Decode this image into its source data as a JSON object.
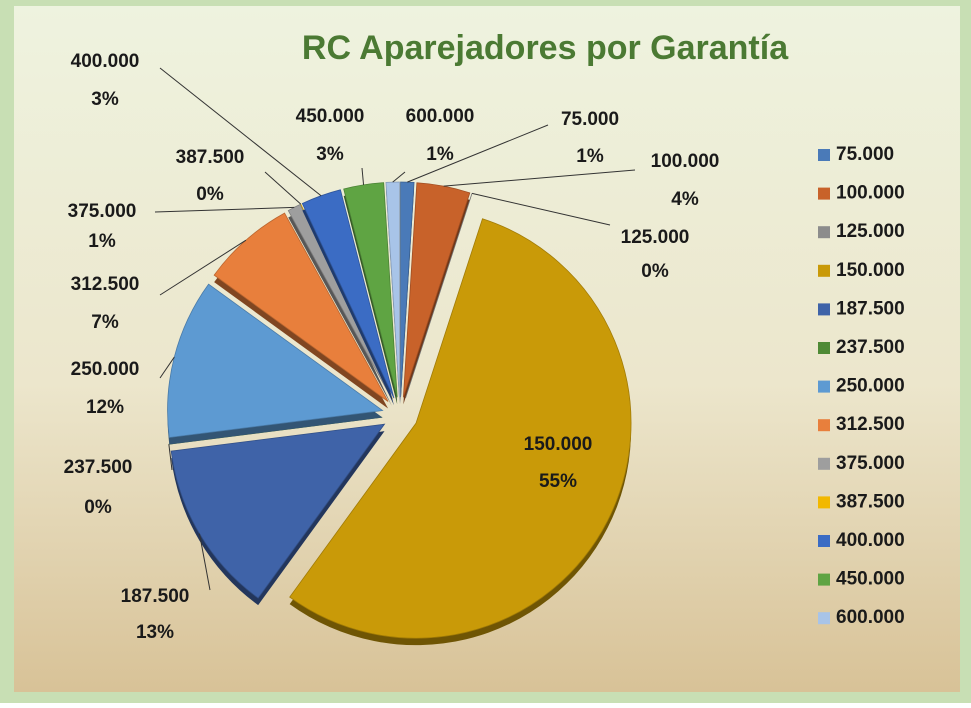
{
  "chart_data": {
    "type": "pie",
    "title": "RC Aparejadores por Garantía",
    "categories": [
      "75.000",
      "100.000",
      "125.000",
      "150.000",
      "187.500",
      "237.500",
      "250.000",
      "312.500",
      "375.000",
      "387.500",
      "400.000",
      "450.000",
      "600.000"
    ],
    "values": [
      1,
      4,
      0,
      55,
      13,
      0,
      12,
      7,
      1,
      0,
      3,
      3,
      1
    ],
    "value_labels": [
      "1%",
      "4%",
      "0%",
      "55%",
      "13%",
      "0%",
      "12%",
      "7%",
      "1%",
      "0%",
      "3%",
      "3%",
      "1%"
    ],
    "colors": [
      "#4a7ab8",
      "#c8622a",
      "#8c8c8c",
      "#c99a08",
      "#3f63a8",
      "#4f8a35",
      "#5d9ad2",
      "#e87f3c",
      "#9e9e9e",
      "#f2b800",
      "#3b6cc4",
      "#5fa443",
      "#a8c4e8"
    ],
    "legend": "right"
  }
}
